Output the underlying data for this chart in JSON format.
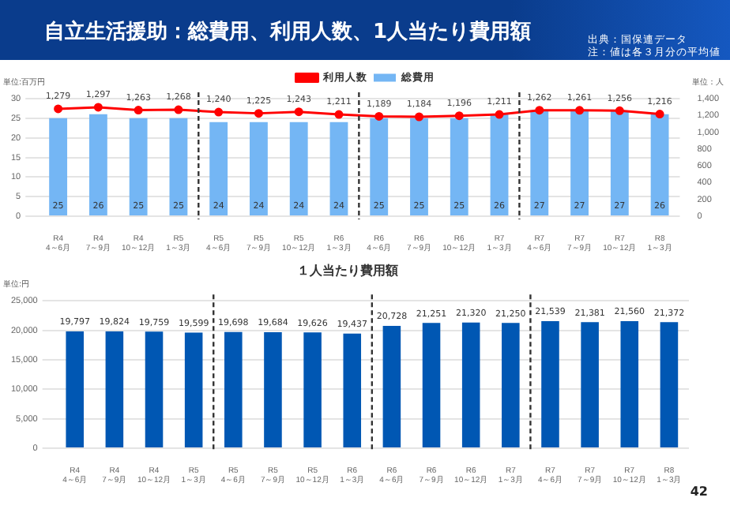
{
  "chart_data": [
    {
      "type": "bar",
      "title": "自立生活援助：総費用、利用人数、1人当たり費用額",
      "ylabel": "単位:百万円",
      "y2label": "単位：人",
      "annotations": [
        "出典：国保連データ",
        "注：値は各３月分の平均値"
      ],
      "categories": [
        "R4\n4～6月",
        "R4\n7～9月",
        "R4\n10～12月",
        "R5\n1～3月",
        "R5\n4～6月",
        "R5\n7～9月",
        "R5\n10～12月",
        "R6\n1～3月",
        "R6\n4～6月",
        "R6\n7～9月",
        "R6\n10～12月",
        "R7\n1～3月",
        "R7\n4～6月",
        "R7\n7～9月",
        "R7\n10～12月",
        "R8\n1～3月"
      ],
      "series": [
        {
          "name": "総費用",
          "type": "bar",
          "color": "#74b6f4",
          "values": [
            25,
            26,
            25,
            25,
            24,
            24,
            24,
            24,
            25,
            25,
            25,
            26,
            27,
            27,
            27,
            26
          ],
          "value_labels": [
            "25",
            "26",
            "25",
            "25",
            "24",
            "24",
            "24",
            "24",
            "25",
            "25",
            "25",
            "26",
            "27",
            "27",
            "27",
            "26"
          ]
        },
        {
          "name": "利用人数",
          "type": "line",
          "axis": "y2",
          "color": "#ff0000",
          "values": [
            1279,
            1297,
            1263,
            1268,
            1240,
            1225,
            1243,
            1211,
            1189,
            1184,
            1196,
            1211,
            1262,
            1261,
            1256,
            1216
          ],
          "value_labels": [
            "1,279",
            "1,297",
            "1,263",
            "1,268",
            "1,240",
            "1,225",
            "1,243",
            "1,211",
            "1,189",
            "1,184",
            "1,196",
            "1,211",
            "1,262",
            "1,261",
            "1,256",
            "1,216"
          ]
        }
      ],
      "ylim": [
        0,
        30
      ],
      "yticks": [
        0,
        5,
        10,
        15,
        20,
        25,
        30
      ],
      "y2lim": [
        0,
        1400
      ],
      "y2ticks": [
        0,
        200,
        400,
        600,
        800,
        {
          "value": 1000,
          "label": "1,000"
        },
        {
          "value": 1200,
          "label": "1,200"
        },
        {
          "value": 1400,
          "label": "1,400"
        }
      ],
      "grid": "y",
      "legend": "top",
      "marker": "circle"
    },
    {
      "type": "bar",
      "title": "１人当たり費用額",
      "ylabel": "単位:円",
      "annotations": [
        "42"
      ],
      "categories": [
        "R4\n4～6月",
        "R4\n7～9月",
        "R4\n10～12月",
        "R5\n1～3月",
        "R5\n4～6月",
        "R5\n7～9月",
        "R5\n10～12月",
        "R6\n1～3月",
        "R6\n4～6月",
        "R6\n7～9月",
        "R6\n10～12月",
        "R7\n1～3月",
        "R7\n4～6月",
        "R7\n7～9月",
        "R7\n10～12月",
        "R8\n1～3月"
      ],
      "values": [
        19797,
        19824,
        19759,
        19599,
        19698,
        19684,
        19626,
        19437,
        20728,
        21251,
        21320,
        21250,
        21539,
        21381,
        21560,
        21372
      ],
      "color": "#0057b3",
      "value_labels": [
        "19,797",
        "19,824",
        "19,759",
        "19,599",
        "19,698",
        "19,684",
        "19,626",
        "19,437",
        "20,728",
        "21,251",
        "21,320",
        "21,250",
        "21,539",
        "21,381",
        "21,560",
        "21,372"
      ],
      "ylim": [
        0,
        25000
      ],
      "yticks": [
        0,
        {
          "value": 5000,
          "label": "5,000"
        },
        {
          "value": 10000,
          "label": "10,000"
        },
        {
          "value": 15000,
          "label": "15,000"
        },
        {
          "value": 20000,
          "label": "20,000"
        },
        {
          "value": 25000,
          "label": "25,000"
        }
      ],
      "grid": "y"
    }
  ]
}
